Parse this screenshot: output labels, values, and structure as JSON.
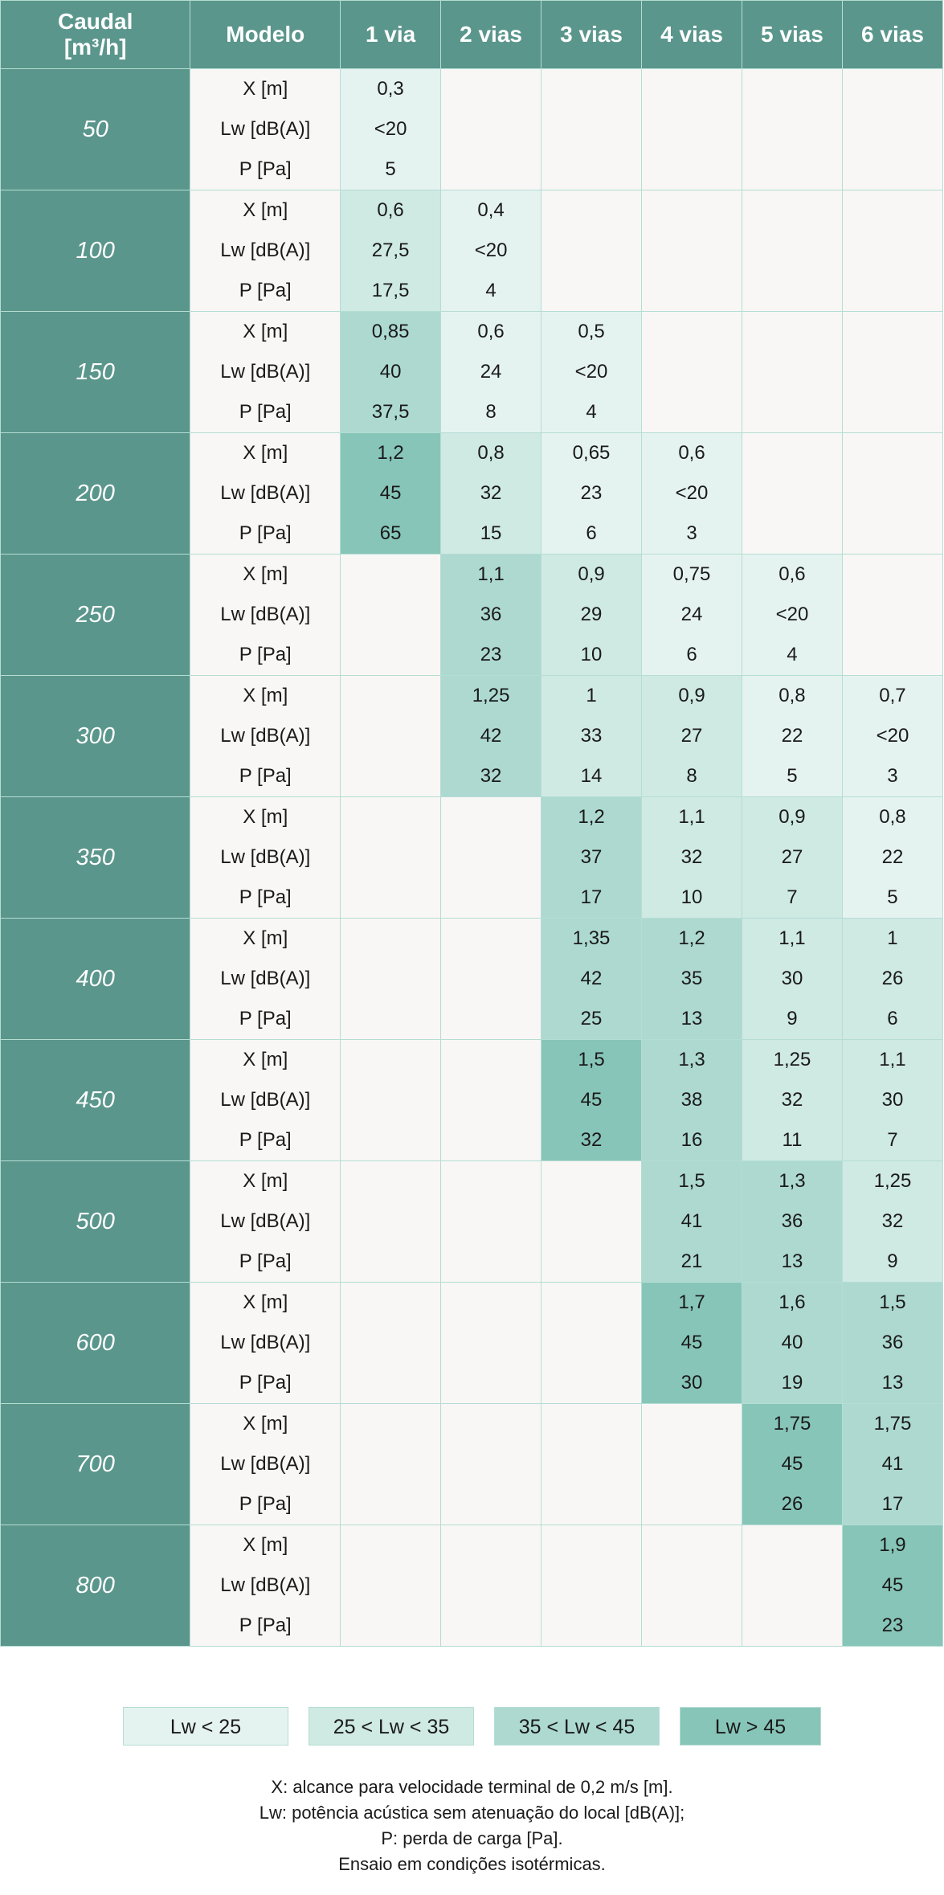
{
  "header": {
    "flow_line1": "Caudal",
    "flow_line2": "[m³/h]",
    "model": "Modelo",
    "ways": [
      "1 via",
      "2 vias",
      "3 vias",
      "4 vias",
      "5 vias",
      "6 vias"
    ]
  },
  "param_labels": [
    "X [m]",
    "Lw [dB(A)]",
    "P [Pa]"
  ],
  "rows": [
    {
      "flow": "50",
      "cells": [
        {
          "level": 1,
          "vals": [
            "0,3",
            "<20",
            "5"
          ]
        },
        {
          "level": 0,
          "vals": [
            "",
            "",
            ""
          ]
        },
        {
          "level": 0,
          "vals": [
            "",
            "",
            ""
          ]
        },
        {
          "level": 0,
          "vals": [
            "",
            "",
            ""
          ]
        },
        {
          "level": 0,
          "vals": [
            "",
            "",
            ""
          ]
        },
        {
          "level": 0,
          "vals": [
            "",
            "",
            ""
          ]
        }
      ]
    },
    {
      "flow": "100",
      "cells": [
        {
          "level": 2,
          "vals": [
            "0,6",
            "27,5",
            "17,5"
          ]
        },
        {
          "level": 1,
          "vals": [
            "0,4",
            "<20",
            "4"
          ]
        },
        {
          "level": 0,
          "vals": [
            "",
            "",
            ""
          ]
        },
        {
          "level": 0,
          "vals": [
            "",
            "",
            ""
          ]
        },
        {
          "level": 0,
          "vals": [
            "",
            "",
            ""
          ]
        },
        {
          "level": 0,
          "vals": [
            "",
            "",
            ""
          ]
        }
      ]
    },
    {
      "flow": "150",
      "cells": [
        {
          "level": 3,
          "vals": [
            "0,85",
            "40",
            "37,5"
          ]
        },
        {
          "level": 1,
          "vals": [
            "0,6",
            "24",
            "8"
          ]
        },
        {
          "level": 1,
          "vals": [
            "0,5",
            "<20",
            "4"
          ]
        },
        {
          "level": 0,
          "vals": [
            "",
            "",
            ""
          ]
        },
        {
          "level": 0,
          "vals": [
            "",
            "",
            ""
          ]
        },
        {
          "level": 0,
          "vals": [
            "",
            "",
            ""
          ]
        }
      ]
    },
    {
      "flow": "200",
      "cells": [
        {
          "level": 4,
          "vals": [
            "1,2",
            "45",
            "65"
          ]
        },
        {
          "level": 2,
          "vals": [
            "0,8",
            "32",
            "15"
          ]
        },
        {
          "level": 1,
          "vals": [
            "0,65",
            "23",
            "6"
          ]
        },
        {
          "level": 1,
          "vals": [
            "0,6",
            "<20",
            "3"
          ]
        },
        {
          "level": 0,
          "vals": [
            "",
            "",
            ""
          ]
        },
        {
          "level": 0,
          "vals": [
            "",
            "",
            ""
          ]
        }
      ]
    },
    {
      "flow": "250",
      "cells": [
        {
          "level": 0,
          "vals": [
            "",
            "",
            ""
          ]
        },
        {
          "level": 3,
          "vals": [
            "1,1",
            "36",
            "23"
          ]
        },
        {
          "level": 2,
          "vals": [
            "0,9",
            "29",
            "10"
          ]
        },
        {
          "level": 1,
          "vals": [
            "0,75",
            "24",
            "6"
          ]
        },
        {
          "level": 1,
          "vals": [
            "0,6",
            "<20",
            "4"
          ]
        },
        {
          "level": 0,
          "vals": [
            "",
            "",
            ""
          ]
        }
      ]
    },
    {
      "flow": "300",
      "cells": [
        {
          "level": 0,
          "vals": [
            "",
            "",
            ""
          ]
        },
        {
          "level": 3,
          "vals": [
            "1,25",
            "42",
            "32"
          ]
        },
        {
          "level": 2,
          "vals": [
            "1",
            "33",
            "14"
          ]
        },
        {
          "level": 2,
          "vals": [
            "0,9",
            "27",
            "8"
          ]
        },
        {
          "level": 1,
          "vals": [
            "0,8",
            "22",
            "5"
          ]
        },
        {
          "level": 1,
          "vals": [
            "0,7",
            "<20",
            "3"
          ]
        }
      ]
    },
    {
      "flow": "350",
      "cells": [
        {
          "level": 0,
          "vals": [
            "",
            "",
            ""
          ]
        },
        {
          "level": 0,
          "vals": [
            "",
            "",
            ""
          ]
        },
        {
          "level": 3,
          "vals": [
            "1,2",
            "37",
            "17"
          ]
        },
        {
          "level": 2,
          "vals": [
            "1,1",
            "32",
            "10"
          ]
        },
        {
          "level": 2,
          "vals": [
            "0,9",
            "27",
            "7"
          ]
        },
        {
          "level": 1,
          "vals": [
            "0,8",
            "22",
            "5"
          ]
        }
      ]
    },
    {
      "flow": "400",
      "cells": [
        {
          "level": 0,
          "vals": [
            "",
            "",
            ""
          ]
        },
        {
          "level": 0,
          "vals": [
            "",
            "",
            ""
          ]
        },
        {
          "level": 3,
          "vals": [
            "1,35",
            "42",
            "25"
          ]
        },
        {
          "level": 3,
          "vals": [
            "1,2",
            "35",
            "13"
          ]
        },
        {
          "level": 2,
          "vals": [
            "1,1",
            "30",
            "9"
          ]
        },
        {
          "level": 2,
          "vals": [
            "1",
            "26",
            "6"
          ]
        }
      ]
    },
    {
      "flow": "450",
      "cells": [
        {
          "level": 0,
          "vals": [
            "",
            "",
            ""
          ]
        },
        {
          "level": 0,
          "vals": [
            "",
            "",
            ""
          ]
        },
        {
          "level": 4,
          "vals": [
            "1,5",
            "45",
            "32"
          ]
        },
        {
          "level": 3,
          "vals": [
            "1,3",
            "38",
            "16"
          ]
        },
        {
          "level": 2,
          "vals": [
            "1,25",
            "32",
            "11"
          ]
        },
        {
          "level": 2,
          "vals": [
            "1,1",
            "30",
            "7"
          ]
        }
      ]
    },
    {
      "flow": "500",
      "cells": [
        {
          "level": 0,
          "vals": [
            "",
            "",
            ""
          ]
        },
        {
          "level": 0,
          "vals": [
            "",
            "",
            ""
          ]
        },
        {
          "level": 0,
          "vals": [
            "",
            "",
            ""
          ]
        },
        {
          "level": 3,
          "vals": [
            "1,5",
            "41",
            "21"
          ]
        },
        {
          "level": 3,
          "vals": [
            "1,3",
            "36",
            "13"
          ]
        },
        {
          "level": 2,
          "vals": [
            "1,25",
            "32",
            "9"
          ]
        }
      ]
    },
    {
      "flow": "600",
      "cells": [
        {
          "level": 0,
          "vals": [
            "",
            "",
            ""
          ]
        },
        {
          "level": 0,
          "vals": [
            "",
            "",
            ""
          ]
        },
        {
          "level": 0,
          "vals": [
            "",
            "",
            ""
          ]
        },
        {
          "level": 4,
          "vals": [
            "1,7",
            "45",
            "30"
          ]
        },
        {
          "level": 3,
          "vals": [
            "1,6",
            "40",
            "19"
          ]
        },
        {
          "level": 3,
          "vals": [
            "1,5",
            "36",
            "13"
          ]
        }
      ]
    },
    {
      "flow": "700",
      "cells": [
        {
          "level": 0,
          "vals": [
            "",
            "",
            ""
          ]
        },
        {
          "level": 0,
          "vals": [
            "",
            "",
            ""
          ]
        },
        {
          "level": 0,
          "vals": [
            "",
            "",
            ""
          ]
        },
        {
          "level": 0,
          "vals": [
            "",
            "",
            ""
          ]
        },
        {
          "level": 4,
          "vals": [
            "1,75",
            "45",
            "26"
          ]
        },
        {
          "level": 3,
          "vals": [
            "1,75",
            "41",
            "17"
          ]
        }
      ]
    },
    {
      "flow": "800",
      "cells": [
        {
          "level": 0,
          "vals": [
            "",
            "",
            ""
          ]
        },
        {
          "level": 0,
          "vals": [
            "",
            "",
            ""
          ]
        },
        {
          "level": 0,
          "vals": [
            "",
            "",
            ""
          ]
        },
        {
          "level": 0,
          "vals": [
            "",
            "",
            ""
          ]
        },
        {
          "level": 0,
          "vals": [
            "",
            "",
            ""
          ]
        },
        {
          "level": 4,
          "vals": [
            "1,9",
            "45",
            "23"
          ]
        }
      ]
    }
  ],
  "legend": [
    {
      "label": "Lw < 25",
      "level": 1
    },
    {
      "label": "25 < Lw < 35",
      "level": 2
    },
    {
      "label": "35 < Lw < 45",
      "level": 3
    },
    {
      "label": "Lw > 45",
      "level": 4
    }
  ],
  "notes": [
    "X: alcance para velocidade terminal de 0,2 m/s [m].",
    "Lw: potência acústica sem atenuação do local [dB(A)];",
    "P: perda de carga [Pa].",
    "Ensaio em condições isotérmicas."
  ],
  "colors": {
    "header": "#5a968c",
    "empty": "#f8f7f5",
    "level1": "#e5f3f0",
    "level2": "#cfe9e3",
    "level3": "#add9d0",
    "level4": "#87c5b9",
    "border": "#b5ddd4"
  }
}
